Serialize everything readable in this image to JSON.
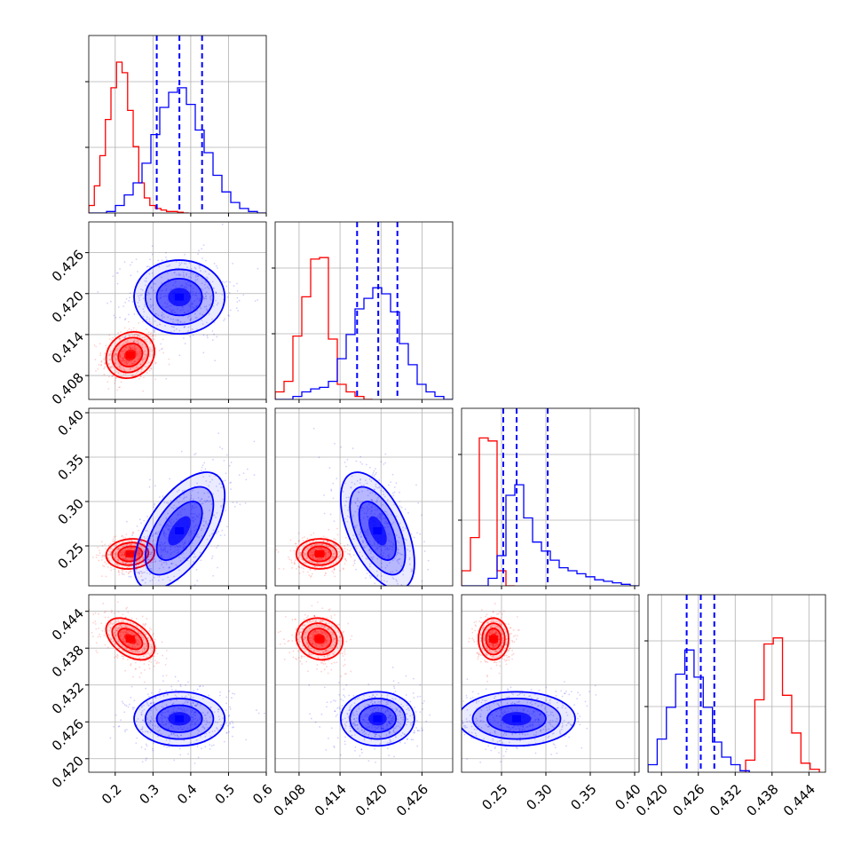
{
  "chart_data": {
    "type": "corner",
    "title": "",
    "colors": {
      "series_a": "#ff0000",
      "series_b": "#0000ff",
      "grid": "#b0b0b0"
    },
    "parameters": [
      {
        "range": [
          0.13,
          0.6
        ],
        "ticks": [
          0.2,
          0.3,
          0.4,
          0.5,
          0.6
        ],
        "tick_labels": [
          "0.2",
          "0.3",
          "0.4",
          "0.5",
          "0.6"
        ]
      },
      {
        "range": [
          0.4045,
          0.4305
        ],
        "ticks": [
          0.408,
          0.414,
          0.42,
          0.426
        ],
        "tick_labels": [
          "0.408",
          "0.414",
          "0.420",
          "0.426"
        ]
      },
      {
        "range": [
          0.205,
          0.405
        ],
        "ticks": [
          0.25,
          0.3,
          0.35,
          0.4
        ],
        "tick_labels": [
          "0.25",
          "0.30",
          "0.35",
          "0.40"
        ]
      },
      {
        "range": [
          0.4178,
          0.4467
        ],
        "ticks": [
          0.42,
          0.426,
          0.432,
          0.438,
          0.444
        ],
        "tick_labels": [
          "0.420",
          "0.426",
          "0.432",
          "0.438",
          "0.444"
        ]
      }
    ],
    "series": [
      {
        "name": "",
        "color": "#ff0000",
        "means": [
          0.24,
          0.411,
          0.241,
          0.4395
        ],
        "stds": [
          0.032,
          0.0017,
          0.0085,
          0.0017
        ],
        "correlations": [
          [
            0,
            1,
            0.15
          ],
          [
            0,
            2,
            0.1
          ],
          [
            0,
            3,
            -0.45
          ],
          [
            1,
            2,
            0.0
          ],
          [
            1,
            3,
            -0.1
          ],
          [
            2,
            3,
            0.0
          ]
        ],
        "histograms": [
          {
            "edges": [
              0.13,
              0.1447,
              0.1594,
              0.1741,
              0.1888,
              0.2035,
              0.2182,
              0.2329,
              0.2476,
              0.2623,
              0.277,
              0.2917,
              0.3064,
              0.3211,
              0.3358,
              0.3505,
              0.3652,
              0.3799,
              0.3946
            ],
            "counts": [
              0.05,
              0.18,
              0.38,
              0.62,
              0.83,
              1.0,
              0.93,
              0.68,
              0.44,
              0.2,
              0.1,
              0.05,
              0.03,
              0.02,
              0.01,
              0.01,
              0.005,
              0.0
            ]
          },
          {
            "edges": [
              0.4045,
              0.4058,
              0.4071,
              0.4084,
              0.4097,
              0.411,
              0.4123,
              0.4136,
              0.4149,
              0.4162,
              0.4175,
              0.4188
            ],
            "counts": [
              0.05,
              0.12,
              0.42,
              0.68,
              0.93,
              0.94,
              0.4,
              0.1,
              0.05,
              0.02,
              0.0
            ]
          },
          {
            "edges": [
              0.205,
              0.215,
              0.225,
              0.235,
              0.245,
              0.255,
              0.265
            ],
            "counts": [
              0.1,
              0.32,
              0.98,
              0.96,
              0.1,
              0.0
            ]
          },
          {
            "edges": [
              0.4337,
              0.4352,
              0.4367,
              0.4382,
              0.4397,
              0.4412,
              0.4427,
              0.4442,
              0.4457
            ],
            "counts": [
              0.08,
              0.48,
              0.85,
              0.89,
              0.51,
              0.26,
              0.06,
              0.02
            ]
          }
        ]
      },
      {
        "name": "",
        "color": "#0000ff",
        "means": [
          0.37,
          0.4195,
          0.267,
          0.4265
        ],
        "stds": [
          0.06,
          0.0027,
          0.033,
          0.0022
        ],
        "correlations": [
          [
            0,
            1,
            0.0
          ],
          [
            0,
            2,
            0.6
          ],
          [
            0,
            3,
            0.0
          ],
          [
            1,
            2,
            -0.55
          ],
          [
            1,
            3,
            0.0
          ],
          [
            2,
            3,
            0.0
          ]
        ],
        "quantiles": [
          [
            0.31,
            0.37,
            0.43
          ],
          [
            0.4165,
            0.4196,
            0.4224
          ],
          [
            0.252,
            0.267,
            0.302
          ],
          [
            0.4241,
            0.4264,
            0.4286
          ]
        ],
        "histograms": [
          {
            "edges": [
              0.13,
              0.1535,
              0.177,
              0.2005,
              0.224,
              0.2475,
              0.271,
              0.2945,
              0.318,
              0.3415,
              0.365,
              0.3885,
              0.412,
              0.4355,
              0.459,
              0.4825,
              0.506,
              0.5295,
              0.553,
              0.5765,
              0.6
            ],
            "counts": [
              0.0,
              0.0,
              0.01,
              0.05,
              0.12,
              0.2,
              0.33,
              0.52,
              0.7,
              0.8,
              0.83,
              0.72,
              0.55,
              0.4,
              0.25,
              0.14,
              0.07,
              0.03,
              0.01,
              0.0
            ]
          },
          {
            "edges": [
              0.4045,
              0.4058,
              0.4071,
              0.4084,
              0.4097,
              0.411,
              0.4123,
              0.4136,
              0.4149,
              0.4162,
              0.4175,
              0.4188,
              0.4201,
              0.4214,
              0.4227,
              0.424,
              0.4253,
              0.4266,
              0.4279,
              0.4292,
              0.4305
            ],
            "counts": [
              0.0,
              0.0,
              0.02,
              0.05,
              0.07,
              0.08,
              0.12,
              0.27,
              0.43,
              0.6,
              0.67,
              0.74,
              0.7,
              0.58,
              0.37,
              0.23,
              0.1,
              0.05,
              0.02,
              0.0
            ]
          },
          {
            "edges": [
              0.205,
              0.215,
              0.225,
              0.235,
              0.245,
              0.255,
              0.265,
              0.275,
              0.285,
              0.295,
              0.305,
              0.315,
              0.325,
              0.335,
              0.345,
              0.355,
              0.365,
              0.375,
              0.385,
              0.395,
              0.405
            ],
            "counts": [
              0.0,
              0.0,
              0.0,
              0.05,
              0.2,
              0.6,
              0.67,
              0.45,
              0.29,
              0.23,
              0.17,
              0.12,
              0.1,
              0.08,
              0.06,
              0.04,
              0.03,
              0.02,
              0.01,
              0.0
            ]
          },
          {
            "edges": [
              0.4178,
              0.4193,
              0.4208,
              0.4223,
              0.4238,
              0.4253,
              0.4268,
              0.4283,
              0.4298,
              0.4313,
              0.4328,
              0.4343
            ],
            "counts": [
              0.05,
              0.22,
              0.43,
              0.65,
              0.81,
              0.63,
              0.43,
              0.2,
              0.1,
              0.05,
              0.01
            ]
          }
        ]
      }
    ],
    "contour_levels_sigma": [
      0.5,
      1.0,
      1.5,
      2.0
    ],
    "grid": true,
    "legend": "none"
  }
}
